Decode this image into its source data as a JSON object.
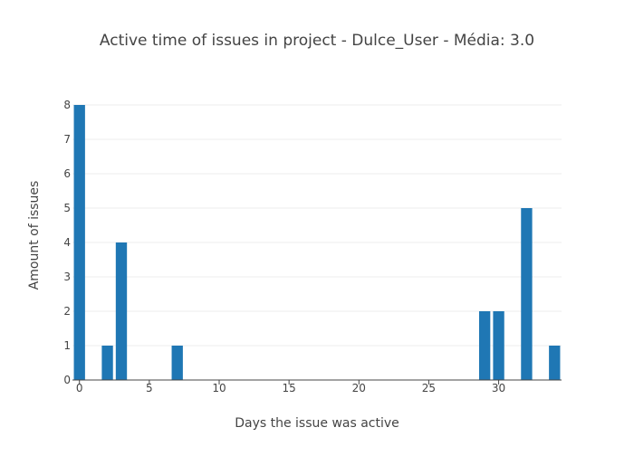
{
  "chart_data": {
    "type": "bar",
    "title": "Active time of issues in project - Dulce_User - Média: 3.0",
    "xlabel": "Days the issue was active",
    "ylabel": "Amount of issues",
    "x": [
      0,
      2,
      3,
      7,
      29,
      30,
      32,
      34
    ],
    "values": [
      8,
      1,
      4,
      1,
      2,
      2,
      5,
      1
    ],
    "xlim": [
      -0.5,
      34.5
    ],
    "ylim": [
      0,
      8
    ],
    "xticks": [
      0,
      5,
      10,
      15,
      20,
      25,
      30
    ],
    "yticks": [
      0,
      1,
      2,
      3,
      4,
      5,
      6,
      7,
      8
    ],
    "grid": "horizontal",
    "bar_color": "#1f77b4"
  }
}
